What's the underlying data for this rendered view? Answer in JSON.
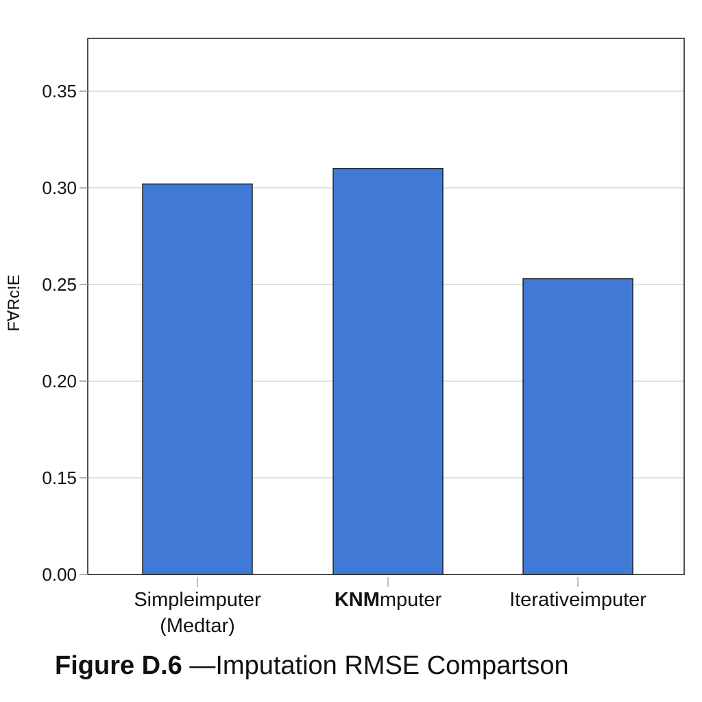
{
  "chart_data": {
    "type": "bar",
    "categories": [
      "Simpleimputer\n(Medtar)",
      "KNMmputer",
      "Iterativeimputer"
    ],
    "values": [
      0.302,
      0.31,
      0.253
    ],
    "ylabel": "FⱯRc!E",
    "xlabel": "",
    "yticks": [
      "0.00",
      "0.15",
      "0.20",
      "0.25",
      "0.30",
      "0.35"
    ],
    "grid": true,
    "bar_color": "#417ad6"
  },
  "caption": {
    "figure_number": "Figure D.6",
    "text": " —Imputation RMSE Compartson"
  }
}
